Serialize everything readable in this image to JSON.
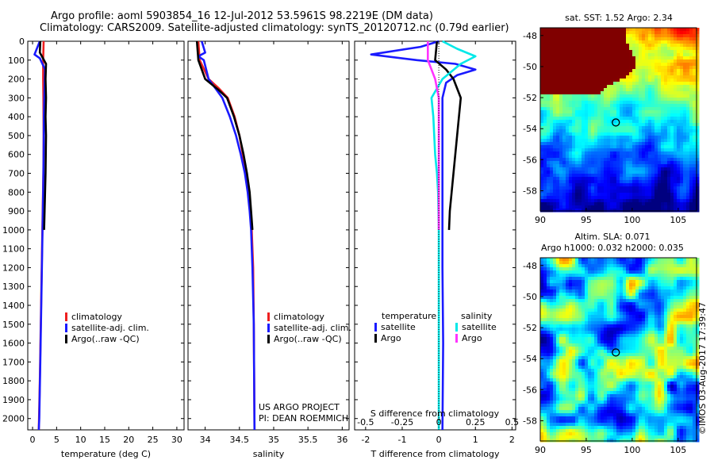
{
  "header": {
    "line1": "Argo profile: aoml 5903854_16 12-Jul-2012 53.5961S 98.2219E (DM data)",
    "line2": "Climatology: CARS2009. Satellite-adjusted climatology: synTS_20120712.nc (0.79d earlier)"
  },
  "colors": {
    "climatology": "#ee2020",
    "satellite": "#1a1aff",
    "argo": "#000000",
    "sal_sat": "#00e8e8",
    "sal_argo": "#ff33ff"
  },
  "chart_data": [
    {
      "type": "line",
      "name": "temperature",
      "xlabel": "temperature (deg C)",
      "xlim": [
        -1,
        31.5
      ],
      "ylim": [
        0,
        2060
      ],
      "xticks": [
        0,
        5,
        10,
        15,
        20,
        25,
        30
      ],
      "yticks": [
        0,
        100,
        200,
        300,
        400,
        500,
        600,
        700,
        800,
        900,
        1000,
        1100,
        1200,
        1300,
        1400,
        1500,
        1600,
        1700,
        1800,
        1900,
        2000
      ],
      "legend": [
        "climatology",
        "satellite-adj. clim.",
        "Argo(..raw -QC)"
      ],
      "series": [
        {
          "name": "climatology",
          "color": "#ee2020",
          "points": [
            [
              2.3,
              0
            ],
            [
              2.2,
              100
            ],
            [
              2.2,
              200
            ],
            [
              2.25,
              300
            ],
            [
              2.3,
              500
            ],
            [
              2.25,
              700
            ],
            [
              2.1,
              900
            ],
            [
              1.9,
              1200
            ],
            [
              1.7,
              1500
            ],
            [
              1.5,
              1800
            ],
            [
              1.3,
              2060
            ]
          ]
        },
        {
          "name": "satellite-adj. clim.",
          "color": "#1a1aff",
          "points": [
            [
              1.5,
              0
            ],
            [
              0.4,
              70
            ],
            [
              1.5,
              90
            ],
            [
              2.6,
              150
            ],
            [
              2.5,
              250
            ],
            [
              2.35,
              400
            ],
            [
              2.3,
              600
            ],
            [
              2.2,
              800
            ],
            [
              2.0,
              1100
            ],
            [
              1.8,
              1400
            ],
            [
              1.6,
              1700
            ],
            [
              1.4,
              2000
            ],
            [
              1.3,
              2060
            ]
          ]
        },
        {
          "name": "Argo(..raw -QC)",
          "color": "#000000",
          "points": [
            [
              1.6,
              0
            ],
            [
              1.5,
              60
            ],
            [
              2.8,
              120
            ],
            [
              2.7,
              200
            ],
            [
              2.8,
              300
            ],
            [
              2.7,
              400
            ],
            [
              2.8,
              500
            ],
            [
              2.75,
              600
            ],
            [
              2.7,
              700
            ],
            [
              2.6,
              800
            ],
            [
              2.5,
              900
            ],
            [
              2.4,
              1000
            ]
          ]
        }
      ]
    },
    {
      "type": "line",
      "name": "salinity",
      "xlabel": "salinity",
      "xlim": [
        33.75,
        36.1
      ],
      "ylim": [
        0,
        2060
      ],
      "xticks": [
        34,
        34.5,
        35,
        35.5,
        36
      ],
      "xticklabels": [
        "34",
        "34.5",
        "35",
        "35.5",
        "36"
      ],
      "legend": [
        "climatology",
        "satellite-adj. clim.",
        "Argo(..raw -QC)"
      ],
      "annotations": [
        "US ARGO PROJECT",
        "PI: DEAN ROEMMICH"
      ],
      "series": [
        {
          "name": "climatology",
          "color": "#ee2020",
          "points": [
            [
              33.9,
              0
            ],
            [
              33.92,
              100
            ],
            [
              34.05,
              200
            ],
            [
              34.2,
              250
            ],
            [
              34.33,
              300
            ],
            [
              34.43,
              400
            ],
            [
              34.5,
              500
            ],
            [
              34.55,
              600
            ],
            [
              34.6,
              700
            ],
            [
              34.63,
              800
            ],
            [
              34.66,
              900
            ],
            [
              34.68,
              1000
            ],
            [
              34.7,
              1200
            ],
            [
              34.71,
              1500
            ],
            [
              34.72,
              2060
            ]
          ]
        },
        {
          "name": "satellite-adj. clim.",
          "color": "#1a1aff",
          "points": [
            [
              33.95,
              0
            ],
            [
              34.0,
              60
            ],
            [
              33.9,
              80
            ],
            [
              33.98,
              100
            ],
            [
              34.05,
              200
            ],
            [
              34.15,
              250
            ],
            [
              34.25,
              300
            ],
            [
              34.36,
              400
            ],
            [
              34.45,
              500
            ],
            [
              34.52,
              600
            ],
            [
              34.58,
              700
            ],
            [
              34.62,
              800
            ],
            [
              34.65,
              900
            ],
            [
              34.67,
              1000
            ],
            [
              34.69,
              1200
            ],
            [
              34.71,
              1500
            ],
            [
              34.72,
              2060
            ]
          ]
        },
        {
          "name": "Argo(..raw -QC)",
          "color": "#000000",
          "points": [
            [
              33.88,
              0
            ],
            [
              33.9,
              100
            ],
            [
              34.0,
              200
            ],
            [
              34.2,
              260
            ],
            [
              34.32,
              300
            ],
            [
              34.42,
              400
            ],
            [
              34.5,
              500
            ],
            [
              34.56,
              600
            ],
            [
              34.61,
              700
            ],
            [
              34.65,
              800
            ],
            [
              34.67,
              900
            ],
            [
              34.69,
              1000
            ]
          ]
        }
      ]
    },
    {
      "type": "line",
      "name": "difference",
      "xlabel": "T difference from climatology",
      "xlabel_top": "S difference from climatology",
      "xlim": [
        -2.3,
        2.1
      ],
      "ylim": [
        0,
        2060
      ],
      "xticks": [
        -2,
        -1,
        0,
        1,
        2
      ],
      "top_xticks": [
        -0.5,
        -0.25,
        0,
        0.25,
        0.5
      ],
      "top_xticklabels": [
        "-0.5",
        "-0.25",
        "0",
        "0.25",
        "0.5"
      ],
      "legend_temperature_title": "temperature",
      "legend_salinity_title": "salinity",
      "legend_temperature": [
        "satellite",
        "Argo"
      ],
      "legend_salinity": [
        "satellite",
        "Argo"
      ],
      "series": [
        {
          "name": "T satellite",
          "color": "#1a1aff",
          "points": [
            [
              0,
              0
            ],
            [
              -0.5,
              30
            ],
            [
              -1.85,
              70
            ],
            [
              -0.6,
              100
            ],
            [
              0.45,
              120
            ],
            [
              1.0,
              150
            ],
            [
              0.5,
              180
            ],
            [
              0.2,
              220
            ],
            [
              0.1,
              300
            ],
            [
              0.1,
              500
            ],
            [
              0.1,
              800
            ],
            [
              0.1,
              1200
            ],
            [
              0.12,
              1600
            ],
            [
              0.1,
              2060
            ]
          ]
        },
        {
          "name": "T Argo",
          "color": "#000000",
          "points": [
            [
              -0.05,
              0
            ],
            [
              -0.1,
              100
            ],
            [
              0.2,
              150
            ],
            [
              0.4,
              200
            ],
            [
              0.6,
              300
            ],
            [
              0.55,
              400
            ],
            [
              0.5,
              500
            ],
            [
              0.45,
              600
            ],
            [
              0.4,
              700
            ],
            [
              0.35,
              800
            ],
            [
              0.3,
              900
            ],
            [
              0.28,
              1000
            ]
          ]
        },
        {
          "name": "S satellite",
          "color": "#00e8e8",
          "points": [
            [
              0.1,
              0
            ],
            [
              0.5,
              40
            ],
            [
              1.0,
              80
            ],
            [
              0.6,
              120
            ],
            [
              0.1,
              200
            ],
            [
              -0.2,
              300
            ],
            [
              -0.15,
              400
            ],
            [
              -0.1,
              600
            ],
            [
              -0.05,
              700
            ],
            [
              -0.02,
              800
            ],
            [
              0,
              1000
            ],
            [
              0,
              1500
            ],
            [
              0,
              2060
            ]
          ]
        },
        {
          "name": "S Argo",
          "color": "#ff33ff",
          "points": [
            [
              -0.3,
              0
            ],
            [
              -0.3,
              100
            ],
            [
              -0.2,
              150
            ],
            [
              -0.1,
              200
            ],
            [
              0,
              300
            ],
            [
              0,
              500
            ],
            [
              0,
              800
            ],
            [
              0,
              1000
            ]
          ]
        }
      ]
    },
    {
      "type": "heatmap",
      "name": "sst-map",
      "title": "sat. SST: 1.52 Argo: 2.34",
      "xlim": [
        90,
        107
      ],
      "ylim": [
        -59.3,
        -47.5
      ],
      "xticks": [
        90,
        95,
        100,
        105
      ],
      "yticks": [
        -48,
        -50,
        -52,
        -54,
        -56,
        -58
      ],
      "marker": [
        98.22,
        -53.6
      ]
    },
    {
      "type": "heatmap",
      "name": "sla-map",
      "title_line1": "Altim. SLA: 0.071",
      "title_line2": "Argo h1000: 0.032 h2000: 0.035",
      "xlim": [
        90,
        107
      ],
      "ylim": [
        -59.3,
        -47.5
      ],
      "xticks": [
        90,
        95,
        100,
        105
      ],
      "yticks": [
        -48,
        -50,
        -52,
        -54,
        -56,
        -58
      ],
      "marker": [
        98.22,
        -53.6
      ]
    }
  ],
  "footer": {
    "stamp": "©IMOS 03-Aug-2017 17:39:47"
  }
}
